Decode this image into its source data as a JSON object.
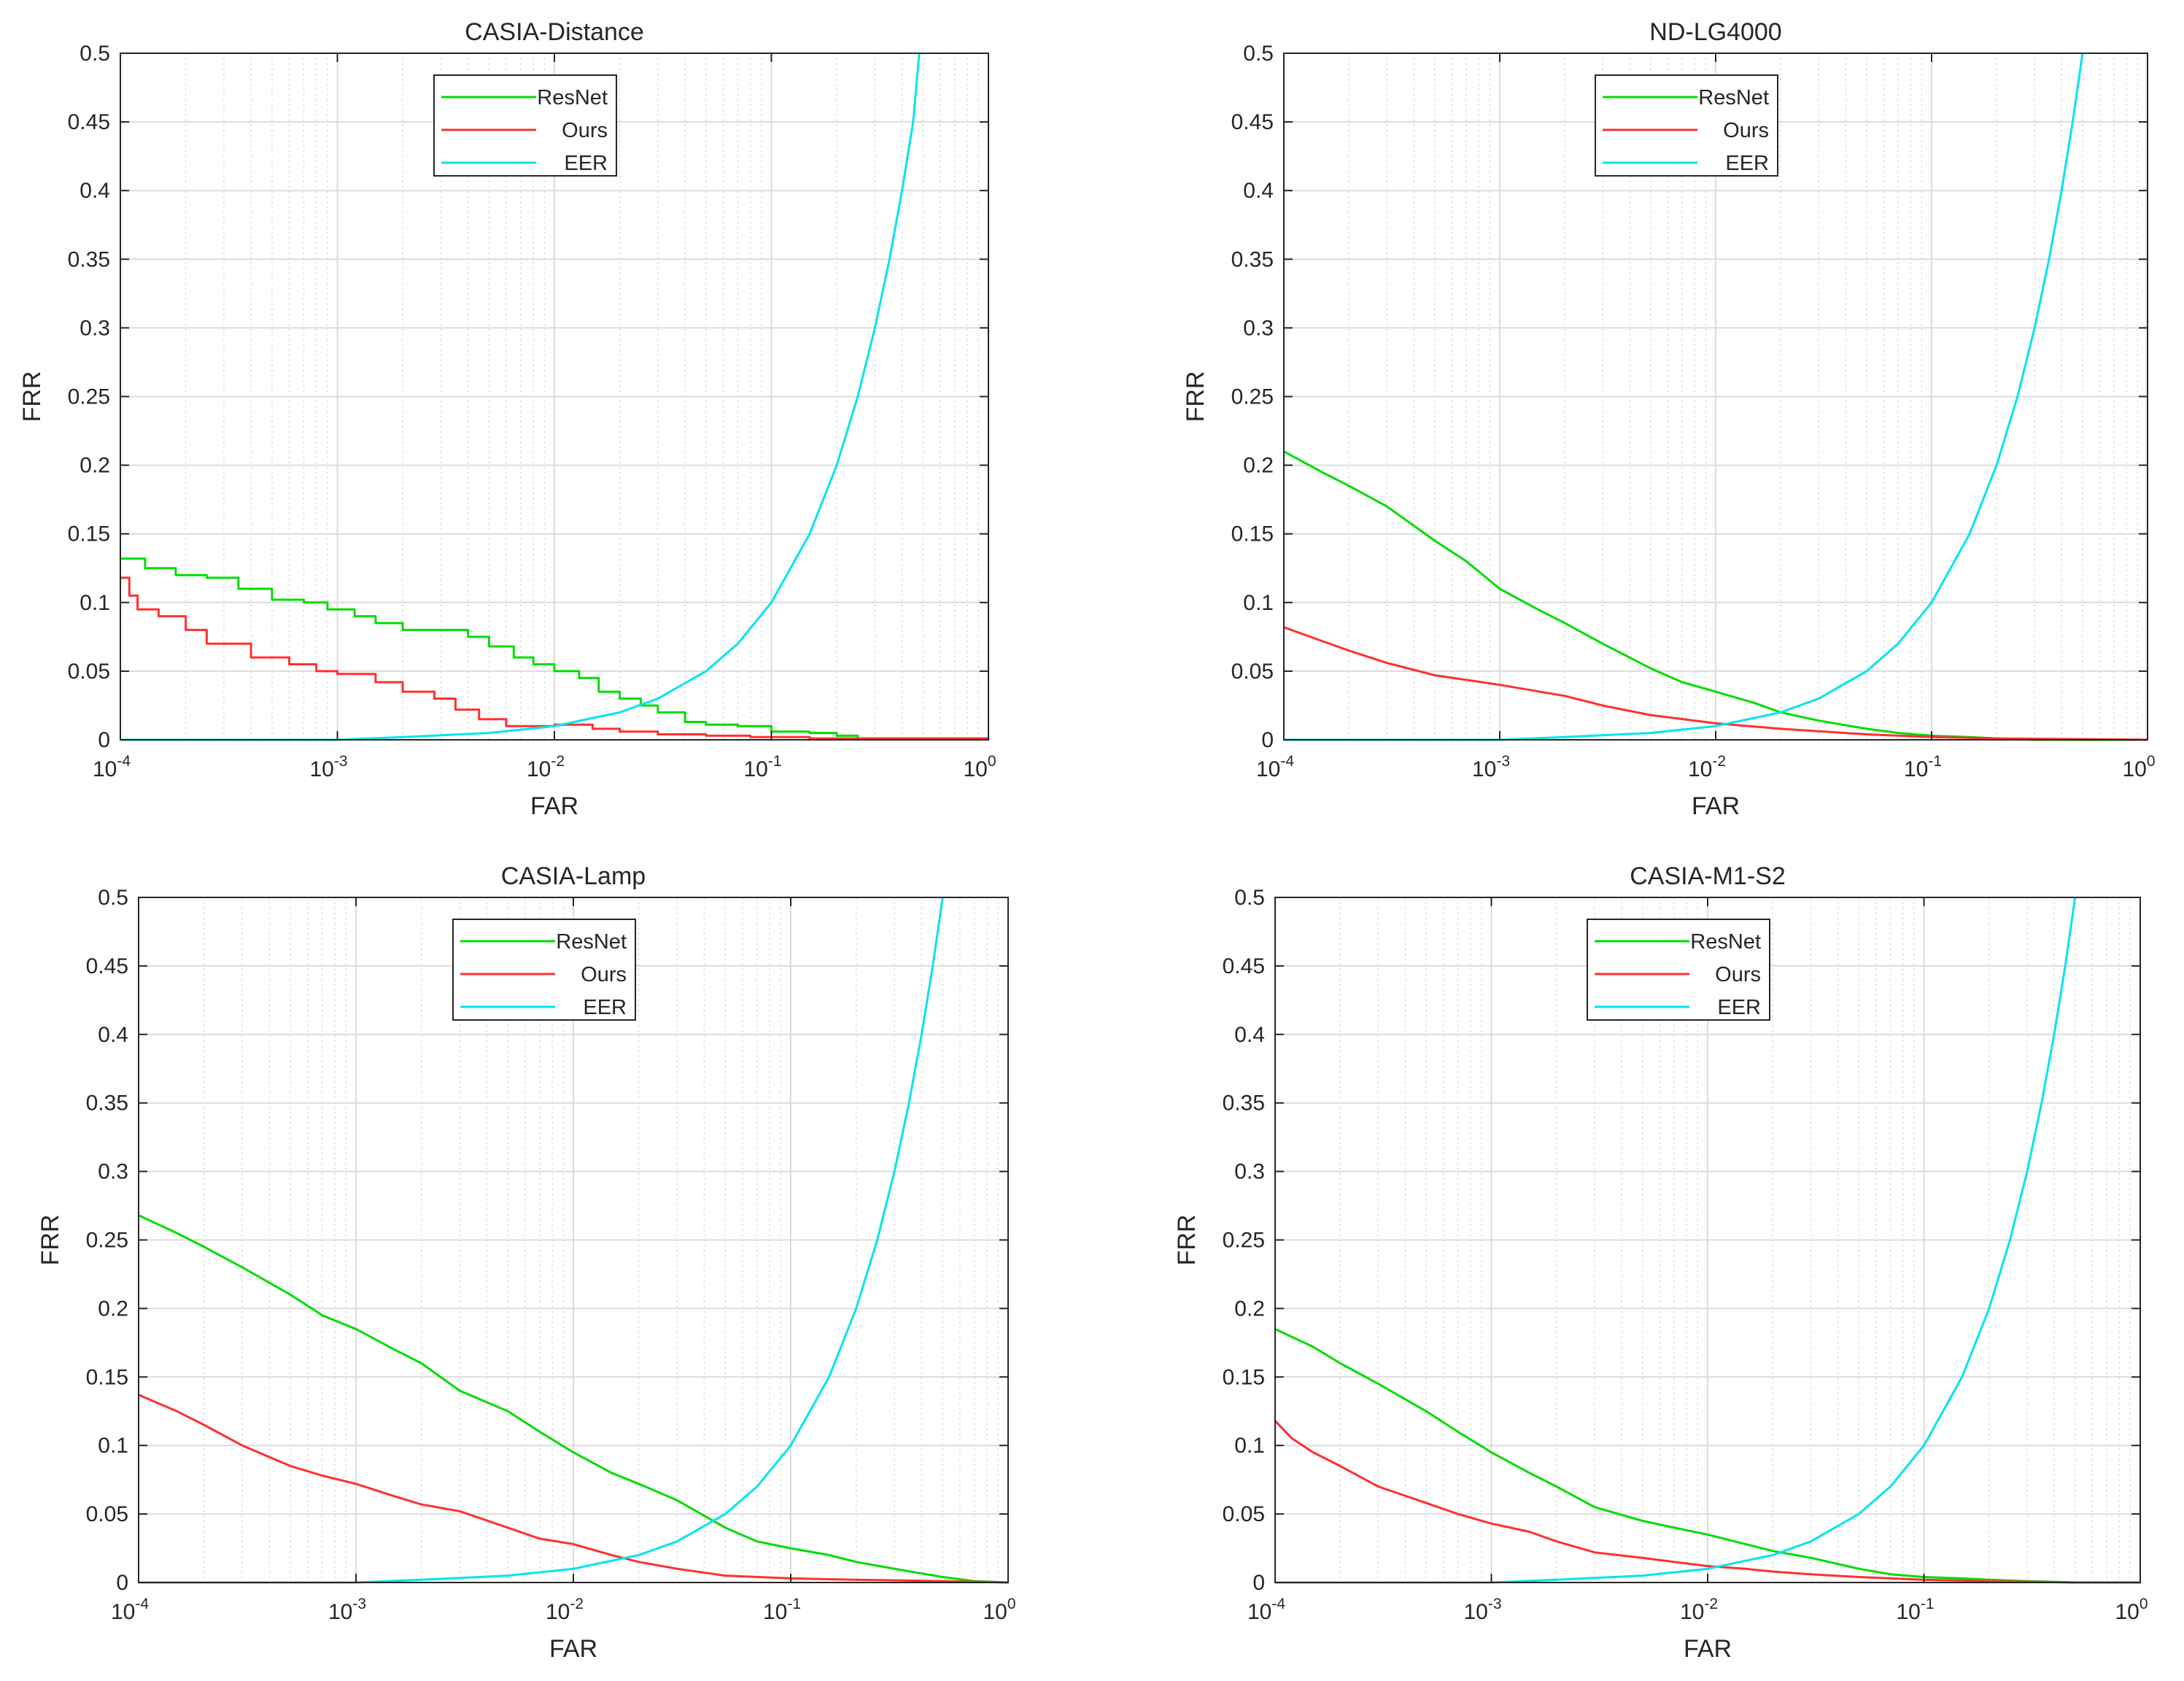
{
  "chart_data": [
    {
      "type": "line",
      "title": "CASIA-Distance",
      "xlabel": "FAR",
      "ylabel": "FRR",
      "xscale": "log",
      "xlim": [
        0.0001,
        1
      ],
      "ylim": [
        0,
        0.5
      ],
      "grid": true,
      "xticks": [
        {
          "base": "10",
          "exp": "-4"
        },
        {
          "base": "10",
          "exp": "-3"
        },
        {
          "base": "10",
          "exp": "-2"
        },
        {
          "base": "10",
          "exp": "-1"
        },
        {
          "base": "10",
          "exp": "0"
        }
      ],
      "yticks": [
        "0",
        "0.05",
        "0.1",
        "0.15",
        "0.2",
        "0.25",
        "0.3",
        "0.35",
        "0.4",
        "0.45",
        "0.5"
      ],
      "legend_position": "top-center",
      "series": [
        {
          "name": "ResNet",
          "color": "#00dd00",
          "step": true,
          "x": [
            0.0001,
            0.00013,
            0.00018,
            0.00025,
            0.00035,
            0.0005,
            0.0007,
            0.0009,
            0.0012,
            0.0015,
            0.002,
            0.003,
            0.004,
            0.005,
            0.0065,
            0.008,
            0.01,
            0.013,
            0.016,
            0.02,
            0.025,
            0.03,
            0.04,
            0.05,
            0.07,
            0.1,
            0.15,
            0.2,
            0.25,
            1.0
          ],
          "y": [
            0.132,
            0.125,
            0.12,
            0.118,
            0.11,
            0.102,
            0.1,
            0.095,
            0.09,
            0.085,
            0.08,
            0.08,
            0.075,
            0.068,
            0.06,
            0.055,
            0.05,
            0.045,
            0.035,
            0.03,
            0.025,
            0.02,
            0.013,
            0.011,
            0.01,
            0.006,
            0.005,
            0.003,
            0.001,
            0.0
          ]
        },
        {
          "name": "Ours",
          "color": "#ff3030",
          "step": true,
          "x": [
            0.0001,
            0.00011,
            0.00012,
            0.00015,
            0.0002,
            0.00025,
            0.0004,
            0.0006,
            0.0008,
            0.001,
            0.0015,
            0.002,
            0.0028,
            0.0035,
            0.0045,
            0.006,
            0.008,
            0.01,
            0.015,
            0.02,
            0.03,
            0.05,
            0.08,
            0.15,
            1.0
          ],
          "y": [
            0.118,
            0.105,
            0.095,
            0.09,
            0.08,
            0.07,
            0.06,
            0.055,
            0.05,
            0.048,
            0.042,
            0.035,
            0.03,
            0.022,
            0.015,
            0.01,
            0.01,
            0.011,
            0.008,
            0.006,
            0.004,
            0.003,
            0.002,
            0.001,
            0.0
          ]
        },
        {
          "name": "EER",
          "color": "#00e5ee",
          "step": false,
          "x": [
            0.0001,
            0.001,
            0.002,
            0.005,
            0.01,
            0.02,
            0.03,
            0.05,
            0.07,
            0.1,
            0.15,
            0.2,
            0.25,
            0.3,
            0.35,
            0.4,
            0.45,
            0.48
          ],
          "y": [
            0.0,
            0.0,
            0.002,
            0.005,
            0.01,
            0.02,
            0.03,
            0.05,
            0.07,
            0.1,
            0.15,
            0.2,
            0.25,
            0.3,
            0.35,
            0.4,
            0.45,
            0.5
          ]
        }
      ]
    },
    {
      "type": "line",
      "title": "ND-LG4000",
      "xlabel": "FAR",
      "ylabel": "FRR",
      "xscale": "log",
      "xlim": [
        0.0001,
        1
      ],
      "ylim": [
        0,
        0.5
      ],
      "grid": true,
      "xticks": [
        {
          "base": "10",
          "exp": "-4"
        },
        {
          "base": "10",
          "exp": "-3"
        },
        {
          "base": "10",
          "exp": "-2"
        },
        {
          "base": "10",
          "exp": "-1"
        },
        {
          "base": "10",
          "exp": "0"
        }
      ],
      "yticks": [
        "0",
        "0.05",
        "0.1",
        "0.15",
        "0.2",
        "0.25",
        "0.3",
        "0.35",
        "0.4",
        "0.45",
        "0.5"
      ],
      "legend_position": "top-center",
      "series": [
        {
          "name": "ResNet",
          "color": "#00dd00",
          "step": false,
          "x": [
            0.0001,
            0.00015,
            0.0002,
            0.0003,
            0.0005,
            0.0007,
            0.001,
            0.0015,
            0.002,
            0.003,
            0.005,
            0.007,
            0.01,
            0.015,
            0.02,
            0.03,
            0.05,
            0.07,
            0.1,
            0.15,
            0.2,
            0.3,
            1.0
          ],
          "y": [
            0.21,
            0.195,
            0.185,
            0.17,
            0.145,
            0.13,
            0.11,
            0.095,
            0.085,
            0.07,
            0.052,
            0.042,
            0.035,
            0.027,
            0.02,
            0.014,
            0.008,
            0.005,
            0.003,
            0.002,
            0.001,
            0.0,
            0.0
          ]
        },
        {
          "name": "Ours",
          "color": "#ff3030",
          "step": false,
          "x": [
            0.0001,
            0.00015,
            0.0002,
            0.0003,
            0.0005,
            0.001,
            0.002,
            0.003,
            0.005,
            0.01,
            0.02,
            0.05,
            0.1,
            0.2,
            1.0
          ],
          "y": [
            0.082,
            0.072,
            0.065,
            0.056,
            0.047,
            0.04,
            0.032,
            0.025,
            0.018,
            0.012,
            0.008,
            0.004,
            0.002,
            0.001,
            0.0
          ]
        },
        {
          "name": "EER",
          "color": "#00e5ee",
          "step": false,
          "x": [
            0.0001,
            0.001,
            0.002,
            0.005,
            0.01,
            0.02,
            0.03,
            0.05,
            0.07,
            0.1,
            0.15,
            0.2,
            0.25,
            0.3,
            0.35,
            0.4,
            0.45,
            0.5
          ],
          "y": [
            0.0,
            0.0,
            0.002,
            0.005,
            0.01,
            0.02,
            0.03,
            0.05,
            0.07,
            0.1,
            0.15,
            0.2,
            0.25,
            0.3,
            0.35,
            0.4,
            0.45,
            0.5
          ]
        }
      ]
    },
    {
      "type": "line",
      "title": "CASIA-Lamp",
      "xlabel": "FAR",
      "ylabel": "FRR",
      "xscale": "log",
      "xlim": [
        0.0001,
        1
      ],
      "ylim": [
        0,
        0.5
      ],
      "grid": true,
      "xticks": [
        {
          "base": "10",
          "exp": "-4"
        },
        {
          "base": "10",
          "exp": "-3"
        },
        {
          "base": "10",
          "exp": "-2"
        },
        {
          "base": "10",
          "exp": "-1"
        },
        {
          "base": "10",
          "exp": "0"
        }
      ],
      "yticks": [
        "0",
        "0.05",
        "0.1",
        "0.15",
        "0.2",
        "0.25",
        "0.3",
        "0.35",
        "0.4",
        "0.45",
        "0.5"
      ],
      "legend_position": "top-center",
      "series": [
        {
          "name": "ResNet",
          "color": "#00dd00",
          "step": false,
          "x": [
            0.0001,
            0.00015,
            0.0002,
            0.0003,
            0.0005,
            0.0007,
            0.001,
            0.0015,
            0.002,
            0.003,
            0.005,
            0.007,
            0.01,
            0.015,
            0.02,
            0.03,
            0.05,
            0.07,
            0.1,
            0.15,
            0.2,
            0.3,
            0.5,
            0.7,
            1.0
          ],
          "y": [
            0.268,
            0.255,
            0.245,
            0.23,
            0.21,
            0.195,
            0.185,
            0.17,
            0.16,
            0.14,
            0.125,
            0.11,
            0.095,
            0.08,
            0.072,
            0.06,
            0.04,
            0.03,
            0.025,
            0.02,
            0.015,
            0.01,
            0.004,
            0.001,
            0.0
          ]
        },
        {
          "name": "Ours",
          "color": "#ff3030",
          "step": false,
          "x": [
            0.0001,
            0.00015,
            0.0002,
            0.0003,
            0.0005,
            0.0007,
            0.001,
            0.0015,
            0.002,
            0.003,
            0.005,
            0.007,
            0.01,
            0.015,
            0.02,
            0.03,
            0.05,
            0.1,
            0.2,
            0.5,
            1.0
          ],
          "y": [
            0.137,
            0.125,
            0.115,
            0.1,
            0.085,
            0.078,
            0.072,
            0.063,
            0.057,
            0.052,
            0.04,
            0.032,
            0.028,
            0.02,
            0.015,
            0.01,
            0.005,
            0.003,
            0.002,
            0.001,
            0.0
          ]
        },
        {
          "name": "EER",
          "color": "#00e5ee",
          "step": false,
          "x": [
            0.0001,
            0.001,
            0.002,
            0.005,
            0.01,
            0.02,
            0.03,
            0.05,
            0.07,
            0.1,
            0.15,
            0.2,
            0.25,
            0.3,
            0.35,
            0.4,
            0.45,
            0.5
          ],
          "y": [
            0.0,
            0.0,
            0.002,
            0.005,
            0.01,
            0.02,
            0.03,
            0.05,
            0.07,
            0.1,
            0.15,
            0.2,
            0.25,
            0.3,
            0.35,
            0.4,
            0.45,
            0.5
          ]
        }
      ]
    },
    {
      "type": "line",
      "title": "CASIA-M1-S2",
      "xlabel": "FAR",
      "ylabel": "FRR",
      "xscale": "log",
      "xlim": [
        0.0001,
        1
      ],
      "ylim": [
        0,
        0.5
      ],
      "grid": true,
      "xticks": [
        {
          "base": "10",
          "exp": "-4"
        },
        {
          "base": "10",
          "exp": "-3"
        },
        {
          "base": "10",
          "exp": "-2"
        },
        {
          "base": "10",
          "exp": "-1"
        },
        {
          "base": "10",
          "exp": "0"
        }
      ],
      "yticks": [
        "0",
        "0.05",
        "0.1",
        "0.15",
        "0.2",
        "0.25",
        "0.3",
        "0.35",
        "0.4",
        "0.45",
        "0.5"
      ],
      "legend_position": "top-center",
      "series": [
        {
          "name": "ResNet",
          "color": "#00dd00",
          "step": false,
          "x": [
            0.0001,
            0.00015,
            0.0002,
            0.0003,
            0.0005,
            0.0007,
            0.001,
            0.0015,
            0.002,
            0.003,
            0.005,
            0.007,
            0.01,
            0.015,
            0.02,
            0.03,
            0.05,
            0.07,
            0.1,
            0.15,
            0.2,
            0.3,
            0.5,
            1.0
          ],
          "y": [
            0.185,
            0.172,
            0.16,
            0.145,
            0.125,
            0.11,
            0.095,
            0.08,
            0.07,
            0.055,
            0.045,
            0.04,
            0.035,
            0.028,
            0.023,
            0.018,
            0.01,
            0.006,
            0.004,
            0.003,
            0.002,
            0.001,
            0.0,
            0.0
          ]
        },
        {
          "name": "Ours",
          "color": "#ff3030",
          "step": false,
          "x": [
            0.0001,
            0.00012,
            0.00015,
            0.0002,
            0.0003,
            0.0005,
            0.0007,
            0.001,
            0.0015,
            0.002,
            0.003,
            0.005,
            0.007,
            0.01,
            0.015,
            0.02,
            0.03,
            0.05,
            0.1,
            0.2,
            0.5,
            1.0
          ],
          "y": [
            0.118,
            0.105,
            0.095,
            0.085,
            0.07,
            0.058,
            0.05,
            0.043,
            0.037,
            0.03,
            0.022,
            0.018,
            0.015,
            0.012,
            0.01,
            0.008,
            0.006,
            0.004,
            0.002,
            0.001,
            0.0,
            0.0
          ]
        },
        {
          "name": "EER",
          "color": "#00e5ee",
          "step": false,
          "x": [
            0.0001,
            0.001,
            0.002,
            0.005,
            0.01,
            0.02,
            0.03,
            0.05,
            0.07,
            0.1,
            0.15,
            0.2,
            0.25,
            0.3,
            0.35,
            0.4,
            0.45,
            0.5
          ],
          "y": [
            0.0,
            0.0,
            0.002,
            0.005,
            0.01,
            0.02,
            0.03,
            0.05,
            0.07,
            0.1,
            0.15,
            0.2,
            0.25,
            0.3,
            0.35,
            0.4,
            0.45,
            0.5
          ]
        }
      ]
    }
  ]
}
